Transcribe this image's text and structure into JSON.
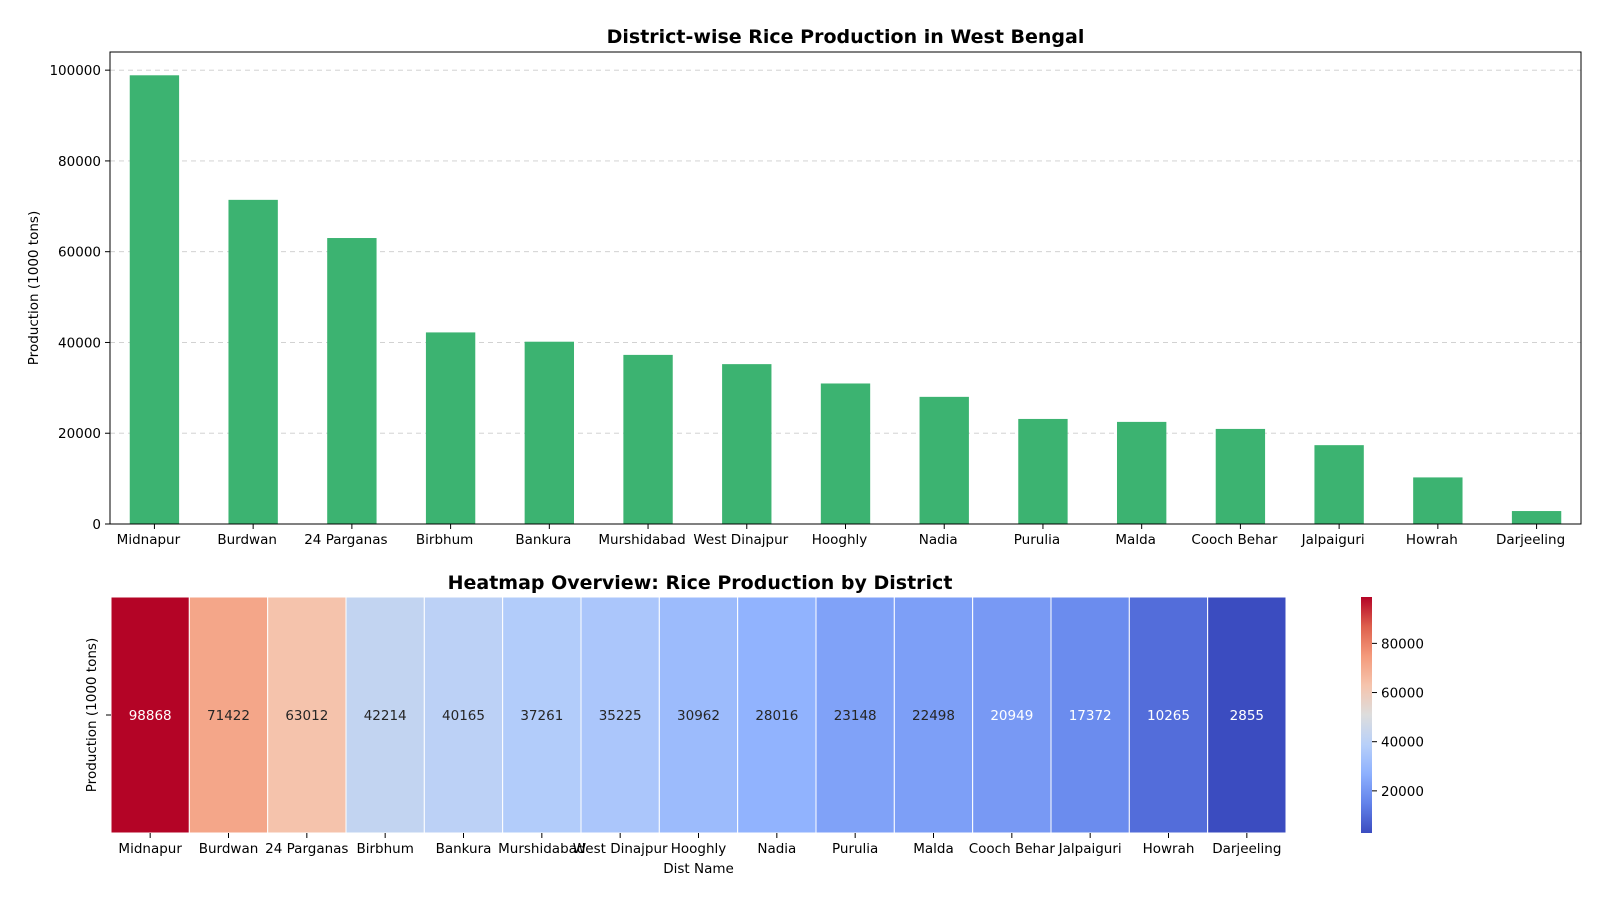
{
  "chart_data": [
    {
      "type": "bar",
      "title": "District-wise Rice Production in West Bengal",
      "xlabel": "",
      "ylabel": "Production (1000 tons)",
      "categories": [
        "Midnapur",
        "Burdwan",
        "24 Parganas",
        "Birbhum",
        "Bankura",
        "Murshidabad",
        "West Dinajpur",
        "Hooghly",
        "Nadia",
        "Purulia",
        "Malda",
        "Cooch Behar",
        "Jalpaiguri",
        "Howrah",
        "Darjeeling"
      ],
      "values": [
        98868,
        71422,
        63012,
        42214,
        40165,
        37261,
        35225,
        30962,
        28016,
        23148,
        22498,
        20949,
        17372,
        10265,
        2855
      ],
      "ylim": [
        0,
        104000
      ],
      "yticks": [
        0,
        20000,
        40000,
        60000,
        80000,
        100000
      ],
      "grid": "y-dashed",
      "color": "#3cb371"
    },
    {
      "type": "heatmap",
      "title": "Heatmap Overview: Rice Production by District",
      "xlabel": "Dist Name",
      "ylabel": "Production (1000 tons)",
      "categories": [
        "Midnapur",
        "Burdwan",
        "24 Parganas",
        "Birbhum",
        "Bankura",
        "Murshidabad",
        "West Dinajpur",
        "Hooghly",
        "Nadia",
        "Purulia",
        "Malda",
        "Cooch Behar",
        "Jalpaiguri",
        "Howrah",
        "Darjeeling"
      ],
      "values": [
        98868,
        71422,
        63012,
        42214,
        40165,
        37261,
        35225,
        30962,
        28016,
        23148,
        22498,
        20949,
        17372,
        10265,
        2855
      ],
      "colormap": "coolwarm",
      "vmin": 2855,
      "vmax": 98868,
      "colorbar_ticks": [
        20000,
        40000,
        60000,
        80000
      ]
    }
  ]
}
